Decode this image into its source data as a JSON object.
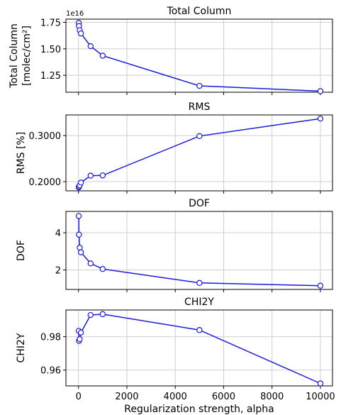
{
  "chart_data": [
    {
      "type": "line",
      "title": "Total Column",
      "ylabel_lines": [
        "Total Column",
        "[molec/cm²]"
      ],
      "offset_text": "1e16",
      "x": [
        10,
        20,
        50,
        100,
        500,
        1000,
        5000,
        10000
      ],
      "series": [
        {
          "values": [
            1.745,
            1.715,
            1.675,
            1.645,
            1.525,
            1.435,
            1.15,
            1.1
          ]
        }
      ],
      "ylim": [
        1.09,
        1.78
      ],
      "yticks": [
        1.25,
        1.5,
        1.75
      ],
      "yticklabels": [
        "1.25",
        "1.50",
        "1.75"
      ],
      "grid": true
    },
    {
      "type": "line",
      "title": "RMS",
      "ylabel_lines": [
        "RMS [%]"
      ],
      "x": [
        10,
        20,
        50,
        100,
        500,
        1000,
        5000,
        10000
      ],
      "series": [
        {
          "values": [
            0.1875,
            0.1895,
            0.192,
            0.198,
            0.213,
            0.2135,
            0.299,
            0.337
          ]
        }
      ],
      "ylim": [
        0.18,
        0.345
      ],
      "yticks": [
        0.2,
        0.3
      ],
      "yticklabels": [
        "0.2000",
        "0.3000"
      ],
      "grid": true
    },
    {
      "type": "line",
      "title": "DOF",
      "ylabel_lines": [
        "DOF"
      ],
      "x": [
        10,
        20,
        50,
        100,
        500,
        1000,
        5000,
        10000
      ],
      "series": [
        {
          "values": [
            4.9,
            3.9,
            3.2,
            2.95,
            2.35,
            2.05,
            1.3,
            1.15
          ]
        }
      ],
      "ylim": [
        0.95,
        5.15
      ],
      "yticks": [
        2,
        4
      ],
      "yticklabels": [
        "2",
        "4"
      ],
      "grid": true
    },
    {
      "type": "line",
      "title": "CHI2Y",
      "ylabel_lines": [
        "CHI2Y"
      ],
      "x": [
        10,
        20,
        50,
        100,
        500,
        1000,
        5000,
        10000
      ],
      "series": [
        {
          "values": [
            0.9835,
            0.9775,
            0.9785,
            0.9825,
            0.993,
            0.9935,
            0.984,
            0.952
          ]
        }
      ],
      "ylim": [
        0.9505,
        0.996
      ],
      "yticks": [
        0.96,
        0.98
      ],
      "yticklabels": [
        "0.96",
        "0.98"
      ],
      "grid": true
    }
  ],
  "shared_x": {
    "xlabel": "Regularization strength, alpha",
    "xlim": [
      -520,
      10500
    ],
    "xticks": [
      0,
      2000,
      4000,
      6000,
      8000,
      10000
    ],
    "xticklabels": [
      "0",
      "2000",
      "4000",
      "6000",
      "8000",
      "10000"
    ]
  },
  "colors": {
    "line": "#1a1adb",
    "marker_face": "#ffffff",
    "grid": "#cfcfcf",
    "axes": "#000000"
  }
}
